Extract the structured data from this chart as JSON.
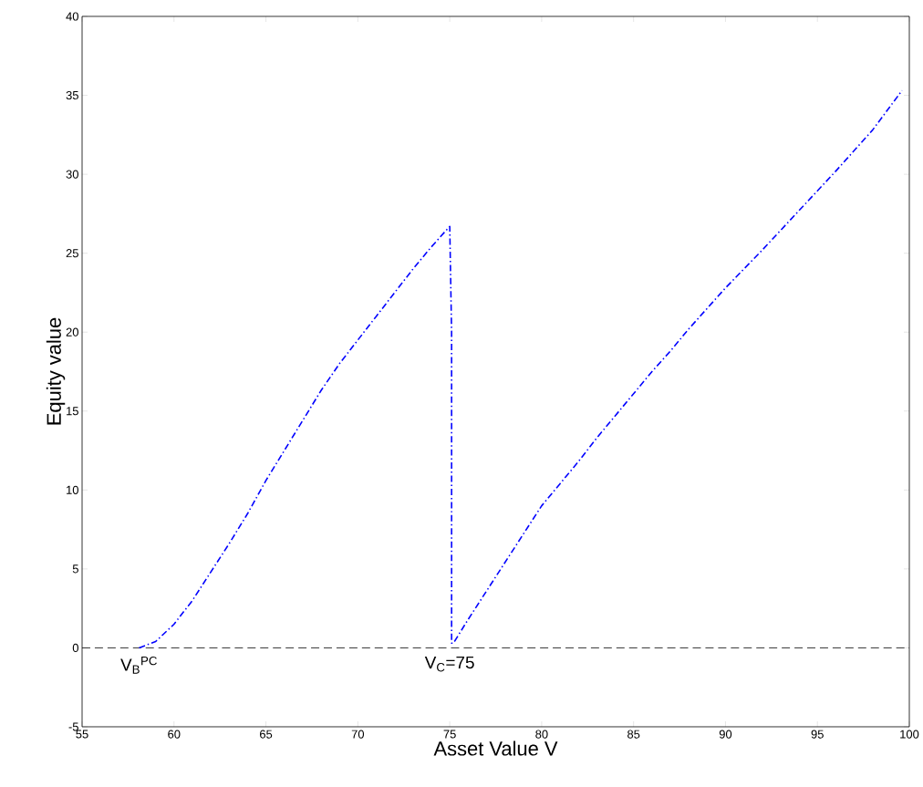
{
  "chart_data": {
    "type": "line",
    "xlabel": "Asset Value V",
    "ylabel": "Equity value",
    "xlim": [
      55,
      100
    ],
    "ylim": [
      -5,
      40
    ],
    "xticks": [
      55,
      60,
      65,
      70,
      75,
      80,
      85,
      90,
      95,
      100
    ],
    "yticks": [
      -5,
      0,
      5,
      10,
      15,
      20,
      25,
      30,
      35,
      40
    ],
    "marker": "none",
    "series": [
      {
        "color": "#0000ff",
        "line_style": "dashdot",
        "x": [
          58.1,
          59,
          60,
          61,
          62,
          63,
          64,
          65,
          66,
          67,
          68,
          69,
          70,
          71,
          72,
          73,
          74,
          75,
          75.1,
          75.1,
          75.2,
          76,
          77,
          78,
          79,
          80,
          81,
          82,
          83,
          84,
          85,
          86,
          87,
          88,
          89,
          90,
          92,
          94,
          96,
          98,
          99.6
        ],
        "values": [
          0,
          0.4,
          1.5,
          3,
          4.8,
          6.6,
          8.5,
          10.6,
          12.5,
          14.4,
          16.3,
          18,
          19.5,
          21,
          22.5,
          24,
          25.4,
          26.7,
          20,
          0.3,
          0.3,
          1.8,
          3.6,
          5.4,
          7.2,
          9,
          10.4,
          11.8,
          13.3,
          14.7,
          16.1,
          17.5,
          18.8,
          20.2,
          21.5,
          22.8,
          25.2,
          27.7,
          30.2,
          32.8,
          35.3
        ]
      }
    ],
    "ref_lines": [
      {
        "axis": "y",
        "value": 0,
        "color": "#000000",
        "line_style": "dashed"
      }
    ],
    "annotations": [
      {
        "text": "V$_{B}$$^{PC}$",
        "x": 58.1,
        "y": 0
      },
      {
        "text": "V$_{C}$=75",
        "x": 75,
        "y": 0
      }
    ]
  }
}
